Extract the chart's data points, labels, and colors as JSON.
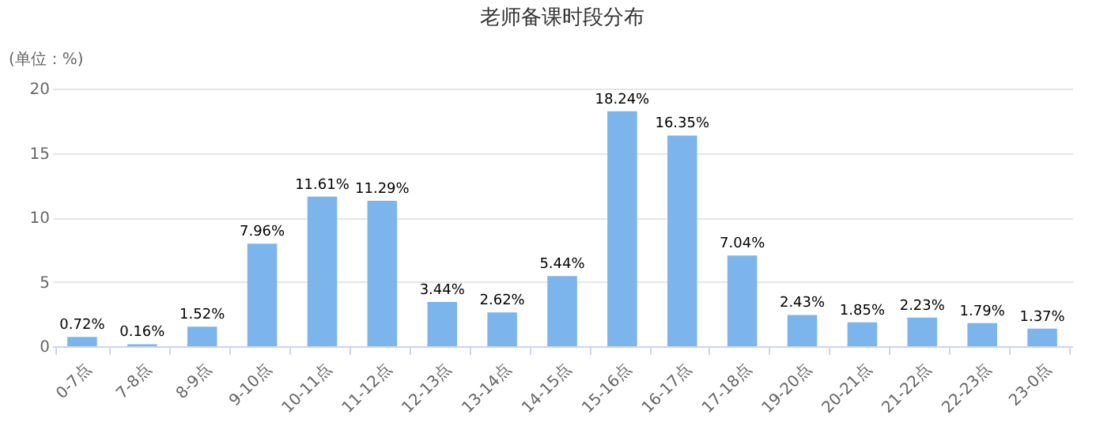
{
  "chart_data": {
    "type": "bar",
    "title": "老师备课时段分布",
    "ylabel": "(单位：%)",
    "categories": [
      "0-7点",
      "7-8点",
      "8-9点",
      "9-10点",
      "10-11点",
      "11-12点",
      "12-13点",
      "13-14点",
      "14-15点",
      "15-16点",
      "16-17点",
      "17-18点",
      "19-20点",
      "20-21点",
      "21-22点",
      "22-23点",
      "23-0点"
    ],
    "values": [
      0.72,
      0.16,
      1.52,
      7.96,
      11.61,
      11.29,
      3.44,
      2.62,
      5.44,
      18.24,
      16.35,
      7.04,
      2.43,
      1.85,
      2.23,
      1.79,
      1.37
    ],
    "value_labels": [
      "0.72%",
      "0.16%",
      "1.52%",
      "7.96%",
      "11.61%",
      "11.29%",
      "3.44%",
      "2.62%",
      "5.44%",
      "18.24%",
      "16.35%",
      "7.04%",
      "2.43%",
      "1.85%",
      "2.23%",
      "1.79%",
      "1.37%"
    ],
    "color": "#7cb5ec",
    "ylim": [
      0,
      20
    ],
    "yticks": [
      0,
      5,
      10,
      15,
      20
    ],
    "grid": "y"
  }
}
